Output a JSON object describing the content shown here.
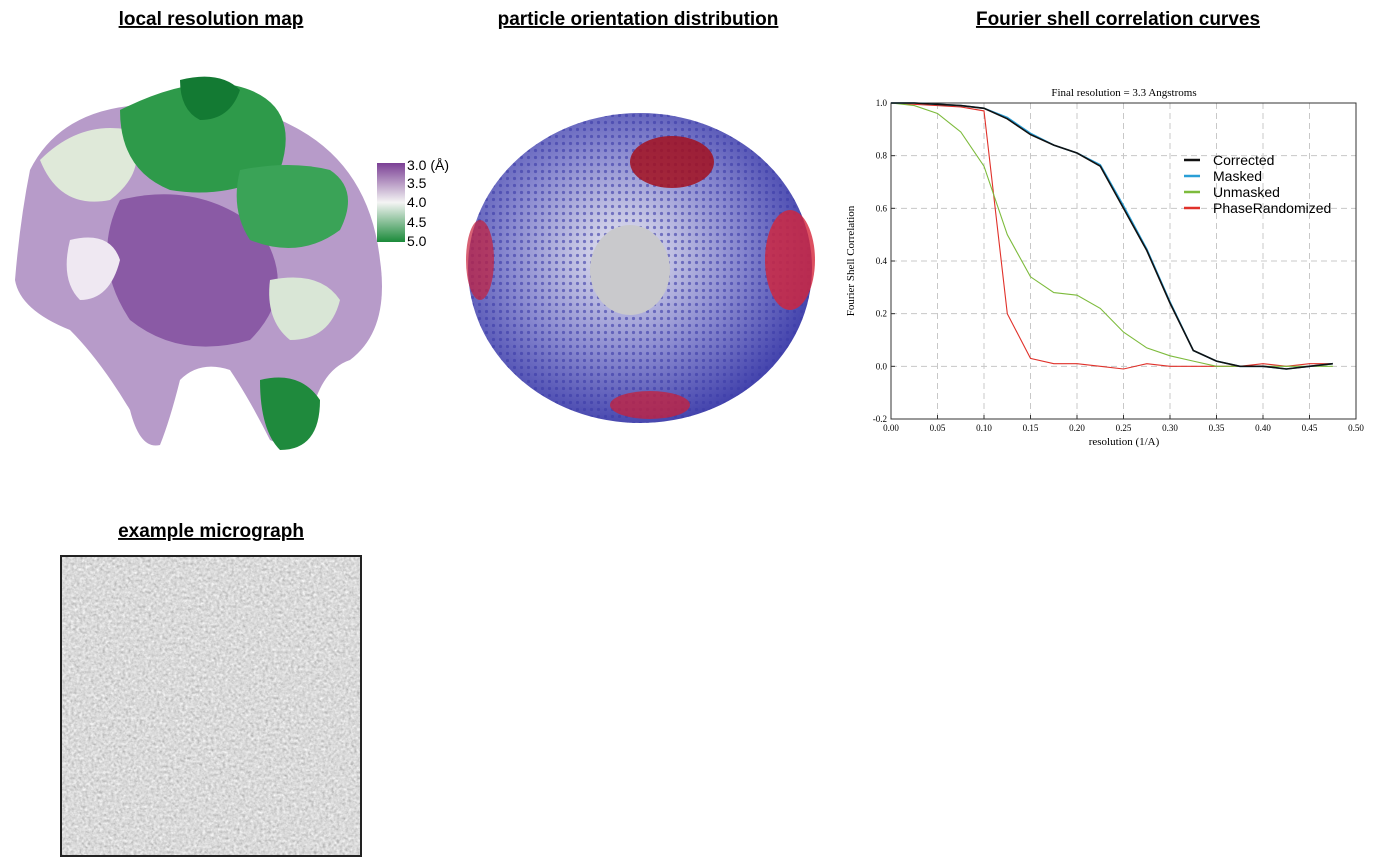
{
  "panels": {
    "local_resolution": {
      "title": "local resolution map",
      "colorbar_labels": [
        "3.0 (Å)",
        "3.5",
        "4.0",
        "4.5",
        "5.0"
      ]
    },
    "orientation": {
      "title": "particle orientation distribution"
    },
    "fsc": {
      "title": "Fourier shell correlation curves"
    },
    "micrograph": {
      "title": "example micrograph"
    }
  },
  "chart_data": {
    "type": "line",
    "title": "Final resolution =   3.3 Angstroms",
    "xlabel": "resolution (1/A)",
    "ylabel": "Fourier Shell Correlation",
    "x": [
      0,
      0.025,
      0.05,
      0.075,
      0.1,
      0.125,
      0.15,
      0.175,
      0.2,
      0.225,
      0.25,
      0.275,
      0.3,
      0.325,
      0.35,
      0.375,
      0.4,
      0.425,
      0.45,
      0.475
    ],
    "series": [
      {
        "name": "Corrected",
        "color": "#111111",
        "values": [
          1.0,
          1.0,
          0.995,
          0.99,
          0.98,
          0.94,
          0.88,
          0.84,
          0.81,
          0.76,
          0.6,
          0.44,
          0.24,
          0.06,
          0.02,
          0.0,
          0.0,
          -0.01,
          0.0,
          0.01
        ]
      },
      {
        "name": "Masked",
        "color": "#2a9fd6",
        "values": [
          1.0,
          1.0,
          0.995,
          0.99,
          0.98,
          0.945,
          0.885,
          0.84,
          0.81,
          0.765,
          0.61,
          0.445,
          0.245,
          0.06,
          0.02,
          0.0,
          0.0,
          -0.01,
          0.0,
          0.01
        ]
      },
      {
        "name": "Unmasked",
        "color": "#7dbb3c",
        "values": [
          1.0,
          0.99,
          0.96,
          0.89,
          0.76,
          0.5,
          0.34,
          0.28,
          0.27,
          0.22,
          0.13,
          0.07,
          0.04,
          0.02,
          0.0,
          0.0,
          0.0,
          0.0,
          0.0,
          0.0
        ]
      },
      {
        "name": "PhaseRandomized",
        "color": "#e0312a",
        "values": [
          1.0,
          0.995,
          0.99,
          0.985,
          0.97,
          0.2,
          0.03,
          0.01,
          0.01,
          0.0,
          -0.01,
          0.01,
          0.0,
          0.0,
          0.0,
          0.0,
          0.01,
          0.0,
          0.01,
          0.01
        ]
      }
    ],
    "xlim": [
      0,
      0.5
    ],
    "ylim": [
      -0.2,
      1.0
    ],
    "xticks": [
      {
        "value": 0,
        "label": "0.00"
      },
      {
        "value": 0.05,
        "label": "0.05"
      },
      {
        "value": 0.1,
        "label": "0.10"
      },
      {
        "value": 0.15,
        "label": "0.15"
      },
      {
        "value": 0.2,
        "label": "0.20"
      },
      {
        "value": 0.25,
        "label": "0.25"
      },
      {
        "value": 0.3,
        "label": "0.30"
      },
      {
        "value": 0.35,
        "label": "0.35"
      },
      {
        "value": 0.4,
        "label": "0.40"
      },
      {
        "value": 0.45,
        "label": "0.45"
      },
      {
        "value": 0.5,
        "label": "0.50"
      }
    ],
    "yticks": [
      -0.2,
      {
        "value": 0,
        "label": "0.0"
      },
      0.2,
      0.4,
      0.6,
      0.8,
      {
        "value": 1,
        "label": "1.0"
      }
    ],
    "grid": true,
    "legend": "upper right"
  }
}
